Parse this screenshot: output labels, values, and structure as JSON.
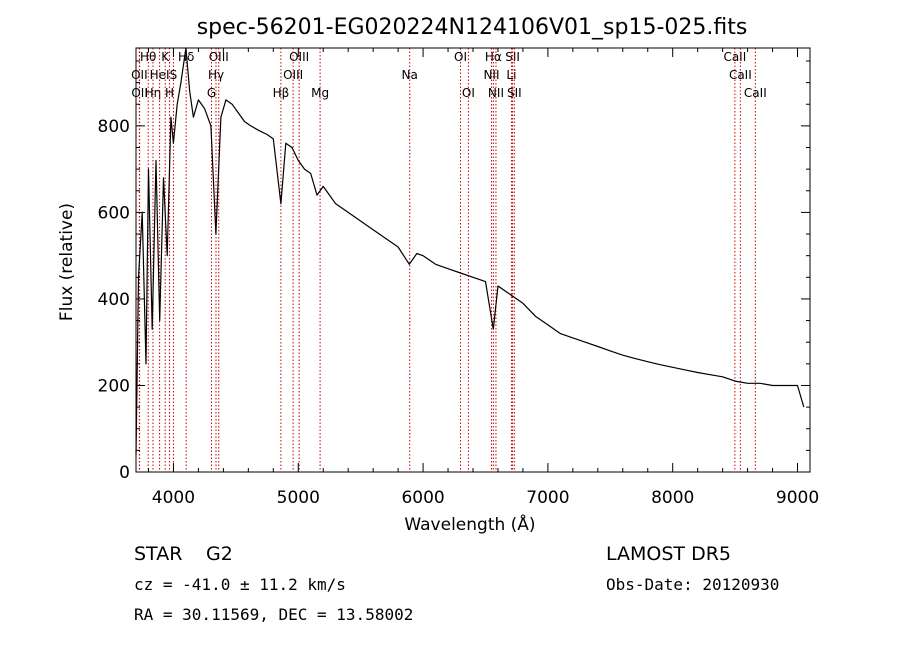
{
  "chart_data": {
    "type": "line",
    "title": "spec-56201-EG020224N124106V01_sp15-025.fits",
    "xlabel": "Wavelength (Å)",
    "ylabel": "Flux (relative)",
    "xlim": [
      3700,
      9100
    ],
    "ylim": [
      0,
      980
    ],
    "xticks": [
      4000,
      5000,
      6000,
      7000,
      8000,
      9000
    ],
    "yticks": [
      0,
      200,
      400,
      600,
      800
    ],
    "grid": false,
    "series": [
      {
        "x": [
          3700,
          3720,
          3750,
          3780,
          3800,
          3830,
          3860,
          3890,
          3920,
          3950,
          3980,
          4000,
          4030,
          4060,
          4100,
          4130,
          4160,
          4200,
          4250,
          4300,
          4340,
          4380,
          4420,
          4470,
          4520,
          4570,
          4620,
          4680,
          4750,
          4800,
          4861,
          4900,
          4950,
          5000,
          5050,
          5100,
          5150,
          5200,
          5250,
          5300,
          5400,
          5500,
          5600,
          5700,
          5800,
          5890,
          5950,
          6000,
          6100,
          6200,
          6300,
          6400,
          6500,
          6563,
          6600,
          6700,
          6800,
          6900,
          7000,
          7100,
          7200,
          7300,
          7400,
          7500,
          7600,
          7700,
          7800,
          7900,
          8000,
          8100,
          8200,
          8300,
          8400,
          8500,
          8600,
          8700,
          8800,
          8900,
          9000,
          9050
        ],
        "y": [
          40,
          450,
          600,
          250,
          700,
          330,
          720,
          350,
          680,
          500,
          820,
          760,
          850,
          900,
          980,
          880,
          820,
          860,
          840,
          800,
          550,
          820,
          860,
          850,
          830,
          810,
          800,
          790,
          780,
          770,
          620,
          760,
          750,
          720,
          700,
          690,
          640,
          660,
          640,
          620,
          600,
          580,
          560,
          540,
          520,
          480,
          505,
          500,
          480,
          470,
          460,
          450,
          440,
          330,
          430,
          410,
          390,
          360,
          340,
          320,
          310,
          300,
          290,
          280,
          270,
          262,
          255,
          248,
          242,
          236,
          230,
          225,
          220,
          210,
          205,
          205,
          200,
          200,
          200,
          150
        ]
      }
    ],
    "line_markers": [
      {
        "name": "Hθ",
        "wl": 3798,
        "row": 0
      },
      {
        "name": "OII",
        "wl": 3727,
        "row": 1
      },
      {
        "name": "OII",
        "wl": 3729,
        "row": 2
      },
      {
        "name": "Hη",
        "wl": 3836,
        "row": 2
      },
      {
        "name": "K",
        "wl": 3934,
        "row": 0
      },
      {
        "name": "HeI",
        "wl": 3889,
        "row": 1
      },
      {
        "name": "H",
        "wl": 3969,
        "row": 2
      },
      {
        "name": "S",
        "wl": 4000,
        "row": 1
      },
      {
        "name": "Hδ",
        "wl": 4102,
        "row": 0
      },
      {
        "name": "OIII",
        "wl": 4363,
        "row": 0
      },
      {
        "name": "Hγ",
        "wl": 4341,
        "row": 1
      },
      {
        "name": "G",
        "wl": 4305,
        "row": 2
      },
      {
        "name": "Hβ",
        "wl": 4861,
        "row": 2
      },
      {
        "name": "OIII",
        "wl": 5007,
        "row": 0
      },
      {
        "name": "OIII",
        "wl": 4959,
        "row": 1
      },
      {
        "name": "Mg",
        "wl": 5175,
        "row": 2
      },
      {
        "name": "Na",
        "wl": 5893,
        "row": 1
      },
      {
        "name": "OI",
        "wl": 6300,
        "row": 0
      },
      {
        "name": "OI",
        "wl": 6363,
        "row": 2
      },
      {
        "name": "Hα",
        "wl": 6563,
        "row": 0
      },
      {
        "name": "NII",
        "wl": 6548,
        "row": 1
      },
      {
        "name": "NII",
        "wl": 6584,
        "row": 2
      },
      {
        "name": "SII",
        "wl": 6717,
        "row": 0
      },
      {
        "name": "Li",
        "wl": 6708,
        "row": 1
      },
      {
        "name": "SII",
        "wl": 6731,
        "row": 2
      },
      {
        "name": "CaII",
        "wl": 8498,
        "row": 0
      },
      {
        "name": "CaII",
        "wl": 8542,
        "row": 1
      },
      {
        "name": "CaII",
        "wl": 8662,
        "row": 2
      }
    ]
  },
  "info": {
    "object_type": "STAR",
    "subclass": "G2",
    "survey": "LAMOST DR5",
    "cz": "cz = -41.0 ± 11.2 km/s",
    "obs_date": "Obs-Date: 20120930",
    "coords": "RA =  30.11569, DEC =  13.58002"
  },
  "colors": {
    "spectrum": "#000000",
    "markers": "#cc0000",
    "axes": "#000000"
  }
}
